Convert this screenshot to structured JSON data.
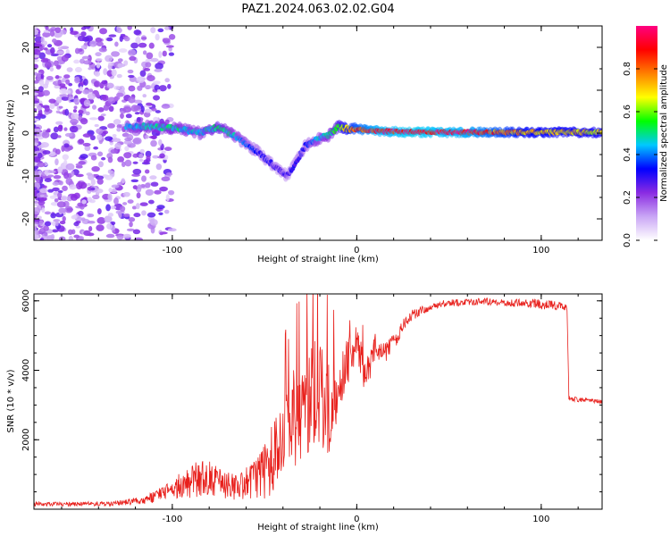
{
  "title": "PAZ1.2024.063.02.02.G04",
  "chart_data": [
    {
      "type": "heatmap",
      "xlabel": "Height of straight line (km)",
      "ylabel": "Frequency (Hz)",
      "xlim": [
        -175,
        133
      ],
      "ylim": [
        -25,
        25
      ],
      "x_ticks": [
        -100,
        0,
        100
      ],
      "y_ticks": [
        -20,
        -10,
        0,
        10,
        20
      ],
      "colorbar": {
        "label": "Normalized spectral amplitude",
        "ticks": [
          0.0,
          0.2,
          0.4,
          0.6,
          0.8
        ],
        "range": [
          0,
          1
        ],
        "colormap": [
          "#ffffff",
          "#c9a6f5",
          "#8a2be2",
          "#0000ff",
          "#00c8ff",
          "#00ff00",
          "#ffff00",
          "#ff8000",
          "#ff0000",
          "#ff0080"
        ]
      },
      "ridge": {
        "x": [
          -125,
          -110,
          -95,
          -85,
          -75,
          -65,
          -55,
          -45,
          -38,
          -33,
          -28,
          -22,
          -15,
          -10,
          -5,
          0,
          10,
          30,
          60,
          90,
          133
        ],
        "y": [
          1.5,
          1.5,
          1.0,
          0.0,
          1.5,
          -1.0,
          -4.0,
          -7.5,
          -10.0,
          -7.0,
          -3.0,
          -1.5,
          -0.5,
          1.5,
          1.0,
          1.0,
          0.5,
          0.2,
          0.2,
          0.2,
          0.2
        ],
        "amplitude": [
          0.45,
          0.5,
          0.5,
          0.45,
          0.55,
          0.45,
          0.35,
          0.3,
          0.3,
          0.3,
          0.35,
          0.45,
          0.5,
          0.6,
          0.75,
          0.85,
          0.95,
          1.0,
          0.95,
          0.75,
          0.7
        ]
      }
    },
    {
      "type": "line",
      "xlabel": "Height of straight line (km)",
      "ylabel": "SNR (10 * v/v)",
      "xlim": [
        -175,
        133
      ],
      "ylim": [
        0,
        6200
      ],
      "x_ticks": [
        -100,
        0,
        100
      ],
      "y_ticks": [
        2000,
        4000,
        6000
      ],
      "color": "#e8201c",
      "series": [
        {
          "x": [
            -175,
            -150,
            -130,
            -115,
            -105,
            -95,
            -85,
            -75,
            -65,
            -55,
            -45,
            -38,
            -30,
            -25,
            -20,
            -15,
            -10,
            -5,
            0,
            5,
            10,
            15,
            20,
            25,
            30,
            40,
            50,
            60,
            70,
            80,
            90,
            100,
            110,
            114,
            115,
            120,
            133
          ],
          "y": [
            150,
            150,
            170,
            250,
            450,
            700,
            900,
            800,
            600,
            900,
            1400,
            2200,
            3000,
            3300,
            3200,
            3000,
            3600,
            4300,
            4700,
            3800,
            4700,
            4500,
            4800,
            5300,
            5600,
            5850,
            5950,
            5950,
            5980,
            5950,
            5950,
            5900,
            5850,
            5800,
            3200,
            3150,
            3100
          ],
          "noise": [
            60,
            60,
            70,
            120,
            220,
            400,
            550,
            500,
            350,
            600,
            1100,
            1500,
            1600,
            1600,
            1600,
            1400,
            900,
            700,
            600,
            500,
            400,
            300,
            250,
            200,
            160,
            120,
            100,
            100,
            100,
            100,
            120,
            150,
            120,
            100,
            80,
            60,
            60
          ]
        }
      ]
    }
  ]
}
